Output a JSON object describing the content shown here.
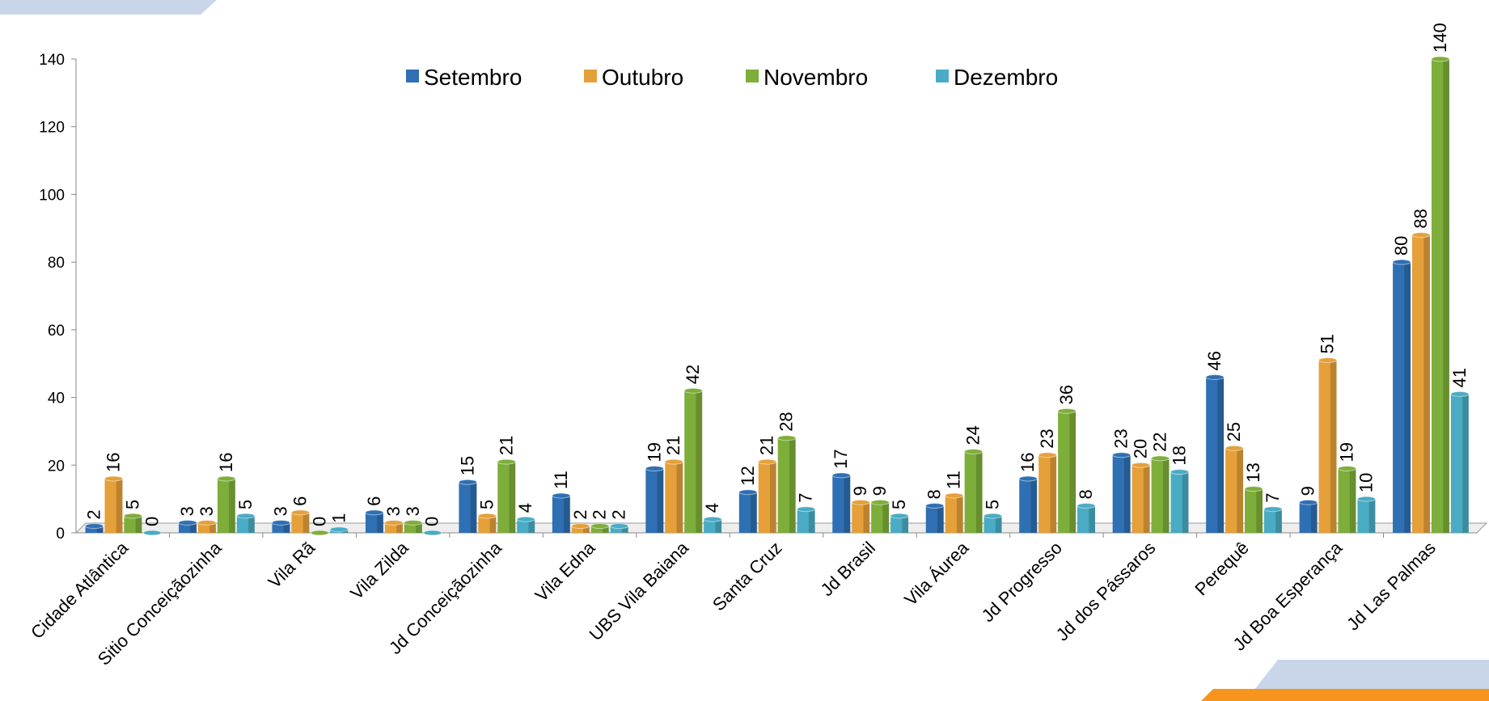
{
  "chart_data": {
    "type": "bar",
    "categories": [
      "Cidade Atlântica",
      "Sitio Conceiçãozinha",
      "Vila Rã",
      "Vila Zilda",
      "Jd Conceiçãozinha",
      "Vila Edna",
      "UBS Vila Baiana",
      "Santa Cruz",
      "Jd Brasil",
      "Vila Áurea",
      "Jd Progresso",
      "Jd dos Pássaros",
      "Perequê",
      "Jd Boa Esperança",
      "Jd Las Palmas"
    ],
    "series": [
      {
        "name": "Setembro",
        "color": "#2f6fb3",
        "values": [
          2,
          3,
          3,
          6,
          15,
          11,
          19,
          12,
          17,
          8,
          16,
          23,
          46,
          9,
          80
        ]
      },
      {
        "name": "Outubro",
        "color": "#e5a03a",
        "values": [
          16,
          3,
          6,
          3,
          5,
          2,
          21,
          21,
          9,
          11,
          23,
          20,
          25,
          51,
          88
        ]
      },
      {
        "name": "Novembro",
        "color": "#7eae3a",
        "values": [
          5,
          16,
          0,
          3,
          21,
          2,
          42,
          28,
          9,
          24,
          36,
          22,
          13,
          19,
          140
        ]
      },
      {
        "name": "Dezembro",
        "color": "#4aabc4",
        "values": [
          0,
          5,
          1,
          0,
          4,
          2,
          4,
          7,
          5,
          5,
          8,
          18,
          7,
          10,
          41
        ]
      }
    ],
    "ylim": [
      0,
      140
    ],
    "yticks": [
      0,
      20,
      40,
      60,
      80,
      100,
      120,
      140
    ],
    "legend": "top"
  }
}
